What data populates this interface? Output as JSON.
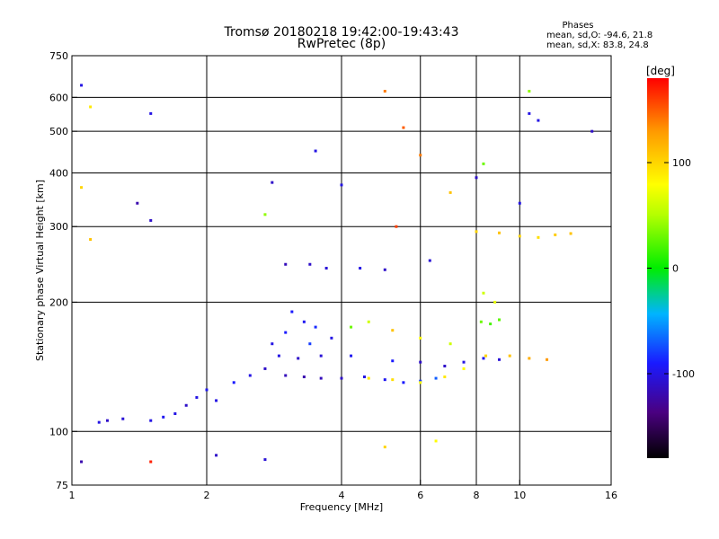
{
  "chart_data": {
    "type": "scatter",
    "title": "Tromsø 20180218 19:42:00-19:43:43",
    "subtitle": "RwPretec (8p)",
    "xlabel": "Frequency [MHz]",
    "ylabel": "Stationary phase Virtual Height [km]",
    "x_scale": "log",
    "y_scale": "log",
    "xlim": [
      1,
      16
    ],
    "ylim": [
      75,
      750
    ],
    "x_ticks": [
      1,
      2,
      4,
      6,
      8,
      10,
      16
    ],
    "y_ticks": [
      75,
      100,
      200,
      300,
      400,
      500,
      600,
      750
    ],
    "x_grid": [
      2,
      4,
      6,
      8,
      10
    ],
    "y_grid": [
      100,
      200,
      300,
      400,
      500,
      600
    ],
    "grid": true,
    "stats": {
      "heading": "Phases",
      "line1": "mean, sd,O: -94.6, 21.8",
      "line2": "mean, sd,X:  83.8, 24.8"
    },
    "colorbar": {
      "label": "[deg]",
      "range": [
        -180,
        180
      ],
      "ticks": [
        100,
        0,
        -100
      ],
      "tick_labels": [
        "100",
        "0",
        "-100"
      ]
    },
    "clusters": [
      {
        "name": "o-trace-low",
        "points": [
          [
            1.15,
            105,
            -100
          ],
          [
            1.2,
            106,
            -110
          ],
          [
            1.3,
            107,
            -105
          ],
          [
            1.5,
            106,
            -100
          ],
          [
            1.6,
            108,
            -95
          ],
          [
            1.7,
            110,
            -100
          ],
          [
            1.8,
            115,
            -110
          ],
          [
            1.9,
            120,
            -100
          ],
          [
            2.0,
            125,
            -95
          ],
          [
            2.1,
            118,
            -100
          ],
          [
            2.3,
            130,
            -90
          ],
          [
            2.5,
            135,
            -100
          ],
          [
            2.7,
            140,
            -110
          ]
        ]
      },
      {
        "name": "o-trace-mid",
        "points": [
          [
            3.0,
            135,
            -115
          ],
          [
            3.3,
            134,
            -120
          ],
          [
            3.6,
            133,
            -115
          ],
          [
            4.0,
            133,
            -110
          ],
          [
            4.5,
            134,
            -100
          ],
          [
            5.0,
            132,
            -95
          ],
          [
            5.5,
            130,
            -90
          ],
          [
            6.0,
            131,
            -80
          ],
          [
            6.5,
            133,
            -70
          ]
        ]
      },
      {
        "name": "o-trace-upper",
        "points": [
          [
            2.9,
            150,
            -100
          ],
          [
            3.2,
            148,
            -110
          ],
          [
            3.6,
            150,
            -105
          ],
          [
            4.2,
            150,
            -95
          ],
          [
            5.2,
            146,
            -90
          ],
          [
            6.0,
            145,
            -110
          ],
          [
            6.8,
            142,
            -110
          ],
          [
            7.5,
            145,
            -100
          ],
          [
            8.3,
            148,
            -95
          ],
          [
            9.0,
            147,
            -105
          ]
        ]
      },
      {
        "name": "spread-cloud",
        "points": [
          [
            2.8,
            160,
            -100
          ],
          [
            3.0,
            170,
            -90
          ],
          [
            3.3,
            180,
            -95
          ],
          [
            3.5,
            175,
            -85
          ],
          [
            3.8,
            165,
            -100
          ],
          [
            3.1,
            190,
            -90
          ],
          [
            3.4,
            160,
            -80
          ],
          [
            4.2,
            175,
            30
          ],
          [
            4.6,
            180,
            60
          ],
          [
            5.2,
            172,
            110
          ],
          [
            6.0,
            165,
            80
          ],
          [
            7.0,
            160,
            60
          ]
        ]
      },
      {
        "name": "x-trace",
        "points": [
          [
            4.6,
            133,
            90
          ],
          [
            5.2,
            132,
            95
          ],
          [
            6.0,
            130,
            80
          ],
          [
            6.8,
            134,
            90
          ],
          [
            7.5,
            140,
            80
          ],
          [
            8.4,
            150,
            100
          ],
          [
            9.5,
            150,
            110
          ],
          [
            10.5,
            148,
            120
          ],
          [
            11.5,
            147,
            130
          ]
        ]
      },
      {
        "name": "f-echo-upper",
        "points": [
          [
            3.0,
            245,
            -115
          ],
          [
            3.4,
            245,
            -110
          ],
          [
            3.7,
            240,
            -105
          ],
          [
            4.4,
            240,
            -100
          ],
          [
            5.0,
            238,
            -110
          ],
          [
            6.3,
            250,
            -105
          ]
        ]
      },
      {
        "name": "f-echo-x-upper",
        "points": [
          [
            8.0,
            292,
            100
          ],
          [
            9.0,
            290,
            110
          ],
          [
            10.0,
            285,
            100
          ],
          [
            11.0,
            283,
            95
          ],
          [
            12.0,
            287,
            105
          ],
          [
            13.0,
            289,
            110
          ]
        ]
      },
      {
        "name": "green-mid",
        "points": [
          [
            8.2,
            180,
            30
          ],
          [
            8.6,
            178,
            20
          ],
          [
            9.0,
            182,
            25
          ],
          [
            8.3,
            210,
            60
          ],
          [
            8.8,
            200,
            70
          ],
          [
            8.3,
            420,
            30
          ]
        ]
      },
      {
        "name": "scattered-noise",
        "points": [
          [
            1.05,
            640,
            -100
          ],
          [
            1.1,
            570,
            90
          ],
          [
            1.05,
            370,
            100
          ],
          [
            1.1,
            280,
            110
          ],
          [
            1.5,
            550,
            -100
          ],
          [
            1.4,
            340,
            -120
          ],
          [
            1.5,
            310,
            -110
          ],
          [
            3.5,
            450,
            -100
          ],
          [
            4.0,
            375,
            -100
          ],
          [
            5.0,
            620,
            140
          ],
          [
            5.5,
            510,
            150
          ],
          [
            6.0,
            440,
            140
          ],
          [
            7.0,
            360,
            110
          ],
          [
            8.0,
            390,
            -110
          ],
          [
            10.5,
            620,
            40
          ],
          [
            10.5,
            550,
            -100
          ],
          [
            11.0,
            530,
            -100
          ],
          [
            14.5,
            500,
            -110
          ],
          [
            1.5,
            85,
            170
          ],
          [
            2.1,
            88,
            -110
          ],
          [
            2.7,
            86,
            -105
          ],
          [
            5.0,
            92,
            100
          ],
          [
            6.5,
            95,
            80
          ],
          [
            1.05,
            85,
            -120
          ],
          [
            2.8,
            380,
            -110
          ],
          [
            2.7,
            320,
            40
          ],
          [
            5.3,
            300,
            160
          ],
          [
            10.0,
            340,
            -100
          ]
        ]
      }
    ]
  }
}
